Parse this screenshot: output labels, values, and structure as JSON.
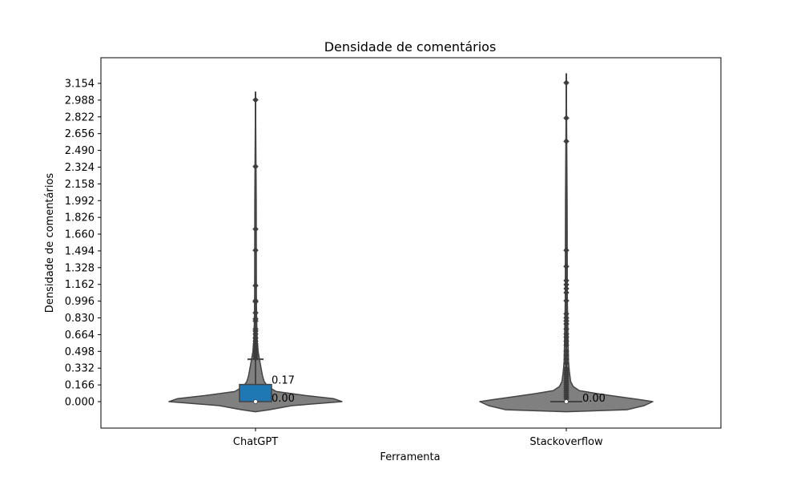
{
  "chart_data": {
    "type": "violin",
    "title": "Densidade de comentários",
    "xlabel": "Ferramenta",
    "ylabel": "Densidade de comentários",
    "categories": [
      "ChatGPT",
      "Stackoverflow"
    ],
    "yticks": [
      "0.000",
      "0.166",
      "0.332",
      "0.498",
      "0.664",
      "0.830",
      "0.996",
      "1.162",
      "1.328",
      "1.494",
      "1.660",
      "1.826",
      "1.992",
      "2.158",
      "2.324",
      "2.490",
      "2.656",
      "2.822",
      "2.988",
      "3.154"
    ],
    "ylim": [
      -0.12,
      3.42
    ],
    "grid": false,
    "colors": {
      "violin": "#808080",
      "box": "#1f77b4",
      "edge": "#444444"
    },
    "violins": [
      {
        "category": "ChatGPT",
        "q1": 0.0,
        "median": 0.0,
        "q3": 0.17,
        "whisker_low": 0.0,
        "whisker_high": 0.42,
        "violin_max": 3.07,
        "labels": [
          "0.17",
          "0.00"
        ],
        "outliers": [
          0.43,
          0.45,
          0.47,
          0.49,
          0.51,
          0.53,
          0.55,
          0.57,
          0.6,
          0.63,
          0.67,
          0.7,
          0.72,
          0.8,
          0.82,
          0.88,
          0.99,
          1.0,
          1.15,
          1.5,
          1.71,
          2.33,
          2.99
        ],
        "density": [
          [
            -0.1,
            0.0
          ],
          [
            -0.08,
            0.16
          ],
          [
            -0.04,
            0.42
          ],
          [
            0.0,
            1.0
          ],
          [
            0.03,
            0.9
          ],
          [
            0.06,
            0.58
          ],
          [
            0.1,
            0.24
          ],
          [
            0.15,
            0.14
          ],
          [
            0.2,
            0.1
          ],
          [
            0.26,
            0.08
          ],
          [
            0.33,
            0.065
          ],
          [
            0.4,
            0.05
          ],
          [
            0.5,
            0.03
          ],
          [
            0.6,
            0.02
          ],
          [
            0.75,
            0.015
          ],
          [
            1.0,
            0.01
          ],
          [
            2.0,
            0.008
          ],
          [
            3.07,
            0.0
          ]
        ]
      },
      {
        "category": "Stackoverflow",
        "q1": 0.0,
        "median": 0.0,
        "q3": 0.0,
        "whisker_low": 0.0,
        "whisker_high": 0.0,
        "violin_max": 3.25,
        "labels": [
          "0.00"
        ],
        "outliers": [
          0.03,
          0.05,
          0.07,
          0.09,
          0.11,
          0.13,
          0.15,
          0.17,
          0.19,
          0.21,
          0.23,
          0.25,
          0.27,
          0.29,
          0.31,
          0.33,
          0.38,
          0.42,
          0.46,
          0.5,
          0.56,
          0.6,
          0.64,
          0.67,
          0.72,
          0.77,
          0.8,
          0.83,
          0.87,
          1.0,
          1.08,
          1.12,
          1.16,
          1.2,
          1.34,
          1.5,
          2.58,
          2.81,
          3.16
        ],
        "density": [
          [
            -0.1,
            0.0
          ],
          [
            -0.08,
            0.7
          ],
          [
            -0.04,
            0.9
          ],
          [
            0.0,
            1.0
          ],
          [
            0.02,
            0.85
          ],
          [
            0.05,
            0.6
          ],
          [
            0.08,
            0.35
          ],
          [
            0.11,
            0.15
          ],
          [
            0.15,
            0.08
          ],
          [
            0.2,
            0.05
          ],
          [
            0.3,
            0.035
          ],
          [
            0.4,
            0.025
          ],
          [
            0.6,
            0.02
          ],
          [
            1.0,
            0.012
          ],
          [
            2.0,
            0.009
          ],
          [
            3.25,
            0.0
          ]
        ]
      }
    ]
  }
}
